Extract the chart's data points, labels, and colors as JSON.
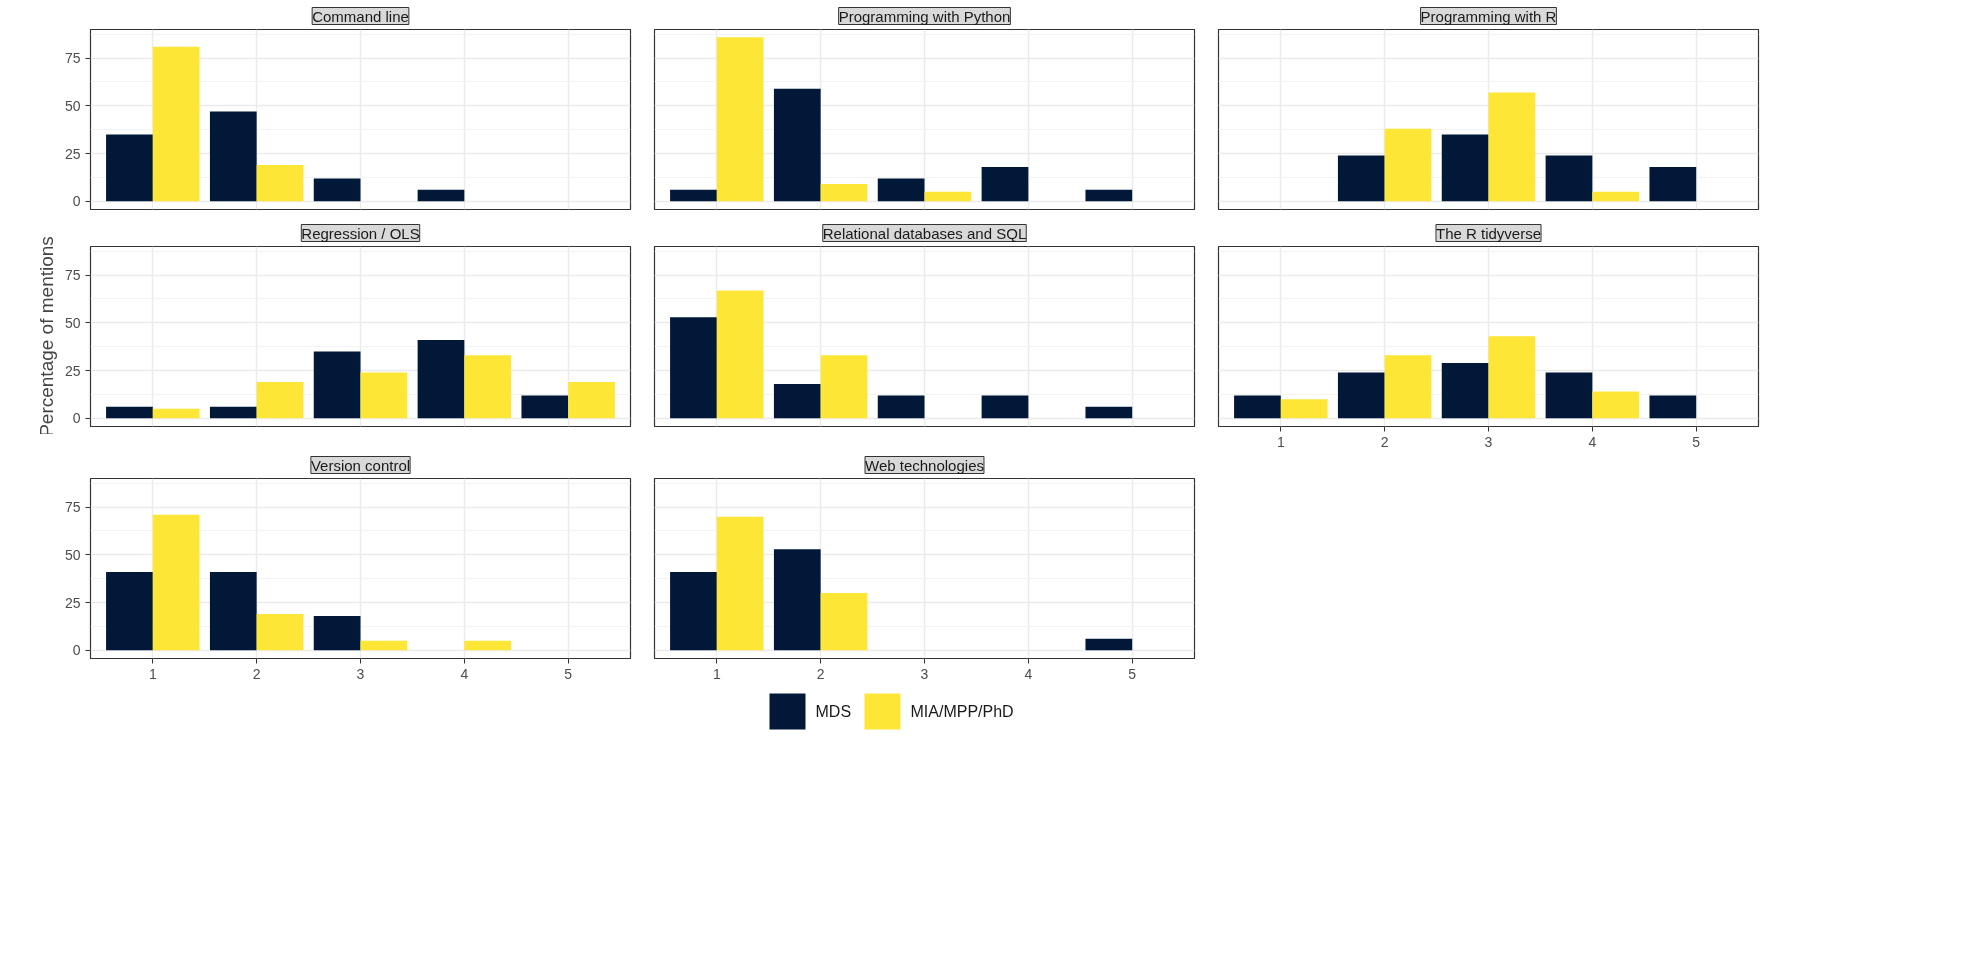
{
  "chart_data": [
    {
      "type": "bar",
      "title": "Command line",
      "categories": [
        "1",
        "2",
        "3",
        "4",
        "5"
      ],
      "ylim": [
        -4.3,
        90
      ],
      "yticks": [
        0,
        25,
        50,
        75
      ],
      "grid": true,
      "tick_labels": "y",
      "legend": "bottom",
      "series": [
        {
          "name": "MDS",
          "color": "#011839",
          "values": [
            35,
            47,
            12,
            6,
            null
          ]
        },
        {
          "name": "MIA/MPP/PhD",
          "color": "#fee637",
          "values": [
            81,
            19,
            null,
            null,
            null
          ]
        }
      ]
    },
    {
      "type": "bar",
      "title": "Programming with Python",
      "categories": [
        "1",
        "2",
        "3",
        "4",
        "5"
      ],
      "ylim": [
        -4.3,
        90
      ],
      "yticks": [
        0,
        25,
        50,
        75
      ],
      "grid": true,
      "tick_labels": false,
      "series": [
        {
          "color": "#011839",
          "values": [
            6,
            59,
            12,
            18,
            6
          ]
        },
        {
          "color": "#fee637",
          "values": [
            86,
            9,
            5,
            null,
            null
          ]
        }
      ]
    },
    {
      "type": "bar",
      "title": "Programming with R",
      "categories": [
        "1",
        "2",
        "3",
        "4",
        "5"
      ],
      "ylim": [
        -4.3,
        90
      ],
      "yticks": [
        0,
        25,
        50,
        75
      ],
      "grid": true,
      "tick_labels": false,
      "series": [
        {
          "color": "#011839",
          "values": [
            null,
            24,
            35,
            24,
            18
          ]
        },
        {
          "color": "#fee637",
          "values": [
            null,
            38,
            57,
            5,
            null
          ]
        }
      ]
    },
    {
      "type": "bar",
      "title": "Regression / OLS",
      "ylabel": "Percentage of mentions",
      "categories": [
        "1",
        "2",
        "3",
        "4",
        "5"
      ],
      "ylim": [
        -4.3,
        90
      ],
      "yticks": [
        0,
        25,
        50,
        75
      ],
      "grid": true,
      "tick_labels": "y",
      "series": [
        {
          "color": "#011839",
          "values": [
            6,
            6,
            35,
            41,
            12
          ]
        },
        {
          "color": "#fee637",
          "values": [
            5,
            19,
            24,
            33,
            19
          ]
        }
      ]
    },
    {
      "type": "bar",
      "title": "Relational databases and SQL",
      "categories": [
        "1",
        "2",
        "3",
        "4",
        "5"
      ],
      "ylim": [
        -4.3,
        90
      ],
      "yticks": [
        0,
        25,
        50,
        75
      ],
      "grid": true,
      "tick_labels": false,
      "series": [
        {
          "color": "#011839",
          "values": [
            53,
            18,
            12,
            12,
            6
          ]
        },
        {
          "color": "#fee637",
          "values": [
            67,
            33,
            null,
            null,
            null
          ]
        }
      ]
    },
    {
      "type": "bar",
      "title": "The R tidyverse",
      "categories": [
        "1",
        "2",
        "3",
        "4",
        "5"
      ],
      "ylim": [
        -4.3,
        90
      ],
      "yticks": [
        0,
        25,
        50,
        75
      ],
      "grid": true,
      "tick_labels": "x",
      "series": [
        {
          "color": "#011839",
          "values": [
            12,
            24,
            29,
            24,
            12
          ]
        },
        {
          "color": "#fee637",
          "values": [
            10,
            33,
            43,
            14,
            null
          ]
        }
      ]
    },
    {
      "type": "bar",
      "title": "Version control",
      "categories": [
        "1",
        "2",
        "3",
        "4",
        "5"
      ],
      "ylim": [
        -4.3,
        90
      ],
      "yticks": [
        0,
        25,
        50,
        75
      ],
      "grid": true,
      "series": [
        {
          "color": "#011839",
          "values": [
            41,
            41,
            18,
            null,
            null
          ]
        },
        {
          "color": "#fee637",
          "values": [
            71,
            19,
            5,
            5,
            null
          ]
        }
      ]
    },
    {
      "type": "bar",
      "title": "Web technologies",
      "categories": [
        "1",
        "2",
        "3",
        "4",
        "5"
      ],
      "ylim": [
        -4.3,
        90
      ],
      "yticks": [
        0,
        25,
        50,
        75
      ],
      "grid": true,
      "tick_labels": "x",
      "series": [
        {
          "color": "#011839",
          "values": [
            41,
            53,
            null,
            null,
            6
          ]
        },
        {
          "color": "#fee637",
          "values": [
            70,
            30,
            null,
            null,
            null
          ]
        }
      ]
    }
  ]
}
